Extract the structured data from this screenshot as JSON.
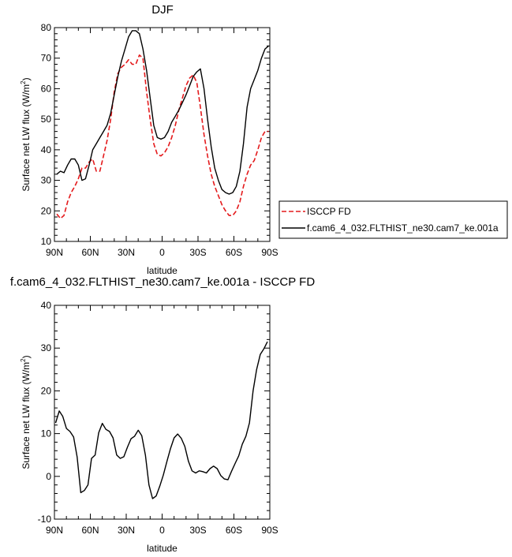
{
  "chart_data": [
    {
      "type": "line",
      "title": "DJF",
      "xlabel": "latitude",
      "ylabel": "Surface net LW flux (W/m",
      "ylabel_sup": "2",
      "ylabel_close": ")",
      "xlim": [
        90,
        -90
      ],
      "ylim": [
        10,
        80
      ],
      "x_ticks": [
        90,
        60,
        30,
        0,
        -30,
        -60,
        -90
      ],
      "x_tick_labels": [
        "90N",
        "60N",
        "30N",
        "0",
        "30S",
        "60S",
        "90S"
      ],
      "y_ticks": [
        10,
        20,
        30,
        40,
        50,
        60,
        70,
        80
      ],
      "y_tick_labels": [
        "10",
        "20",
        "30",
        "40",
        "50",
        "60",
        "70",
        "80"
      ],
      "legend_position": "outside-right",
      "series": [
        {
          "name": "ISCCP FD",
          "color": "#e41a1c",
          "dash": "dashed",
          "x": [
            88,
            85,
            82,
            79,
            76,
            73,
            70,
            67,
            64,
            61,
            58,
            55,
            52,
            49,
            46,
            43,
            40,
            37,
            34,
            31,
            28,
            25,
            22,
            19,
            16,
            13,
            10,
            7,
            4,
            1,
            -2,
            -5,
            -8,
            -11,
            -14,
            -17,
            -20,
            -23,
            -26,
            -29,
            -32,
            -35,
            -38,
            -41,
            -44,
            -47,
            -50,
            -53,
            -56,
            -59,
            -62,
            -65,
            -68,
            -71,
            -74,
            -77,
            -80,
            -83,
            -86,
            -89
          ],
          "y": [
            19,
            17.5,
            18.5,
            23,
            26,
            28,
            30.5,
            34,
            34,
            36,
            37,
            33,
            33,
            38,
            43,
            50,
            59,
            65,
            67,
            68,
            69.5,
            68,
            68,
            71,
            70,
            59,
            50,
            42,
            38.5,
            38,
            39,
            41,
            44,
            48,
            53,
            57,
            61,
            63.5,
            64.5,
            62,
            54,
            45,
            38,
            32,
            28,
            25,
            22,
            20,
            18.5,
            18.5,
            20,
            23,
            28,
            32,
            35,
            36.5,
            40,
            44,
            46,
            46
          ]
        },
        {
          "name": "f.cam6_4_032.FLTHIST_ne30.cam7_ke.001a",
          "color": "#000000",
          "dash": "solid",
          "x": [
            88,
            85,
            82,
            79,
            76,
            73,
            70,
            67,
            64,
            61,
            58,
            55,
            52,
            49,
            46,
            43,
            40,
            37,
            34,
            31,
            28,
            25,
            22,
            19,
            16,
            13,
            10,
            7,
            4,
            1,
            -2,
            -5,
            -8,
            -11,
            -14,
            -17,
            -20,
            -23,
            -26,
            -29,
            -32,
            -35,
            -38,
            -41,
            -44,
            -47,
            -50,
            -53,
            -56,
            -59,
            -62,
            -65,
            -68,
            -71,
            -74,
            -77,
            -80,
            -83,
            -86,
            -89
          ],
          "y": [
            32,
            33,
            32.5,
            35,
            37,
            37,
            35,
            30,
            30.5,
            35,
            40,
            42,
            44,
            46,
            48,
            52,
            58,
            64,
            69,
            73,
            77,
            79,
            79,
            78,
            73,
            66,
            57,
            48,
            44,
            43.5,
            44,
            46,
            49,
            51,
            53,
            55.5,
            58,
            61,
            64,
            65.5,
            66.5,
            60,
            50,
            41,
            34,
            30,
            27,
            26,
            25.5,
            26,
            28,
            33,
            42,
            54,
            60,
            63,
            66,
            70,
            73,
            74
          ]
        }
      ]
    },
    {
      "type": "line",
      "title": "f.cam6_4_032.FLTHIST_ne30.cam7_ke.001a - ISCCP FD",
      "xlabel": "latitude",
      "ylabel": "Surface net LW flux (W/m",
      "ylabel_sup": "2",
      "ylabel_close": ")",
      "xlim": [
        90,
        -90
      ],
      "ylim": [
        -10,
        40
      ],
      "x_ticks": [
        90,
        60,
        30,
        0,
        -30,
        -60,
        -90
      ],
      "x_tick_labels": [
        "90N",
        "60N",
        "30N",
        "0",
        "30S",
        "60S",
        "90S"
      ],
      "y_ticks": [
        -10,
        0,
        10,
        20,
        30,
        40
      ],
      "y_tick_labels": [
        "-10",
        "0",
        "10",
        "20",
        "30",
        "40"
      ],
      "series": [
        {
          "color": "#000000",
          "dash": "solid",
          "x": [
            89,
            86,
            83,
            80,
            77,
            74,
            71,
            68,
            65,
            62,
            59,
            56,
            53,
            50,
            47,
            44,
            41,
            38,
            35,
            32,
            29,
            26,
            23,
            20,
            17,
            14,
            11,
            8,
            5,
            2,
            -1,
            -4,
            -7,
            -10,
            -13,
            -16,
            -19,
            -22,
            -25,
            -28,
            -31,
            -34,
            -37,
            -40,
            -43,
            -46,
            -49,
            -52,
            -55,
            -58,
            -61,
            -64,
            -67,
            -70,
            -73,
            -76,
            -79,
            -82,
            -85,
            -88
          ],
          "y": [
            12.5,
            15.3,
            14,
            11.2,
            10.5,
            9.2,
            4.5,
            -3.8,
            -3.3,
            -2,
            4.2,
            5,
            10.2,
            12.4,
            11,
            10.5,
            9,
            5,
            4.2,
            4.6,
            6.8,
            8.8,
            9.4,
            10.8,
            9.5,
            5,
            -2,
            -5.2,
            -4.6,
            -2.3,
            0.3,
            3.5,
            6.5,
            9,
            9.9,
            8.9,
            7,
            3.5,
            1.3,
            0.8,
            1.3,
            1.1,
            0.8,
            1.8,
            2.4,
            1.8,
            0.2,
            -0.6,
            -0.8,
            1.2,
            3,
            4.8,
            7.5,
            9.4,
            12.5,
            20,
            25,
            28.5,
            29.8,
            31.5
          ]
        }
      ]
    }
  ]
}
